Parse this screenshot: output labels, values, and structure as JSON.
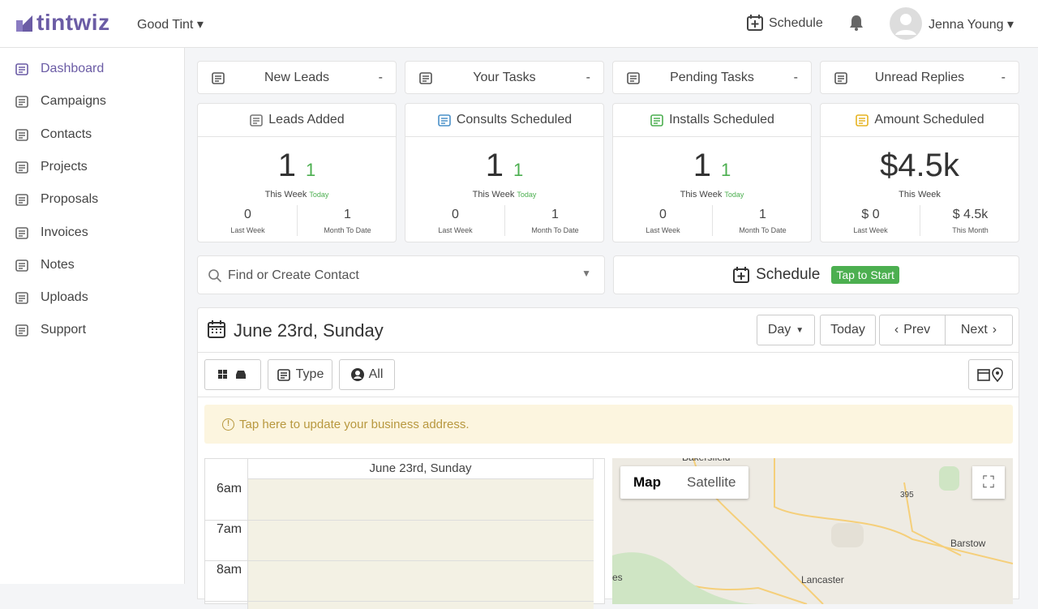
{
  "header": {
    "brand": "tintwiz",
    "company": "Good Tint",
    "schedule": "Schedule",
    "user": "Jenna Young"
  },
  "sidebar": [
    "Dashboard",
    "Campaigns",
    "Contacts",
    "Projects",
    "Proposals",
    "Invoices",
    "Notes",
    "Uploads",
    "Support"
  ],
  "quick": [
    {
      "label": "New Leads",
      "value": "-"
    },
    {
      "label": "Your Tasks",
      "value": "-"
    },
    {
      "label": "Pending Tasks",
      "value": "-"
    },
    {
      "label": "Unread Replies",
      "value": "-"
    }
  ],
  "stats": [
    {
      "title": "Leads Added",
      "main": 1,
      "today": 1,
      "period": "This Week",
      "today_label": "Today",
      "left": 0,
      "left_label": "Last Week",
      "right": 1,
      "right_label": "Month To Date"
    },
    {
      "title": "Consults Scheduled",
      "main": 1,
      "today": 1,
      "period": "This Week",
      "today_label": "Today",
      "left": 0,
      "left_label": "Last Week",
      "right": 1,
      "right_label": "Month To Date"
    },
    {
      "title": "Installs Scheduled",
      "main": 1,
      "today": 1,
      "period": "This Week",
      "today_label": "Today",
      "left": 0,
      "left_label": "Last Week",
      "right": 1,
      "right_label": "Month To Date"
    },
    {
      "title": "Amount Scheduled",
      "main": "$4.5k",
      "period": "This Week",
      "left": "$ 0",
      "left_label": "Last Week",
      "right": "$ 4.5k",
      "right_label": "This Month"
    }
  ],
  "search": {
    "placeholder": "Find or Create Contact"
  },
  "schedule_button": {
    "label": "Schedule",
    "badge": "Tap to Start"
  },
  "calendar": {
    "date": "June 23rd, Sunday",
    "view": "Day",
    "today": "Today",
    "prev": "Prev",
    "next": "Next",
    "filters": [
      "Type",
      "All"
    ],
    "notice": "Tap here to update your business address.",
    "column": "June 23rd, Sunday",
    "hours": [
      "6am",
      "7am",
      "8am"
    ]
  },
  "map": {
    "tabs": [
      "Map",
      "Satellite"
    ],
    "places": [
      "Bakersfield",
      "395",
      "Barstow",
      "Lancaster",
      "es"
    ]
  }
}
